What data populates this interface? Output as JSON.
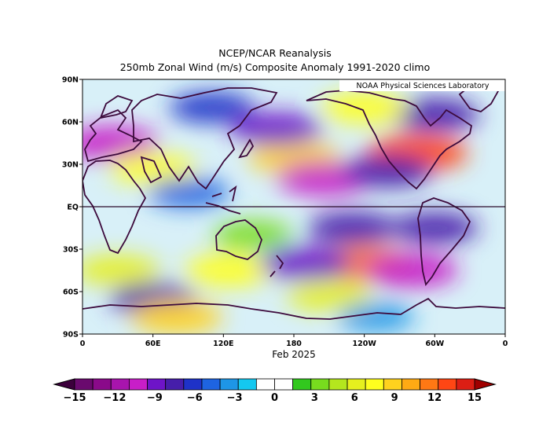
{
  "title": "NCEP/NCAR Reanalysis",
  "subtitle": "250mb Zonal Wind (m/s) Composite Anomaly 1991-2020 climo",
  "credit": "NOAA Physical Sciences Laboratory",
  "xlabel": "Feb 2025",
  "lat_ticks": [
    "90N",
    "60N",
    "30N",
    "EQ",
    "30S",
    "60S",
    "90S"
  ],
  "lon_ticks": [
    "0",
    "60E",
    "120E",
    "180",
    "120W",
    "60W",
    "0"
  ],
  "colorbar": {
    "labels": [
      "-15",
      "-12",
      "-9",
      "-6",
      "-3",
      "0",
      "3",
      "6",
      "9",
      "12",
      "15"
    ],
    "colors": [
      "#6a0a6e",
      "#8a0a8a",
      "#a814ad",
      "#c81ec8",
      "#6e14c8",
      "#461eaa",
      "#1e32c8",
      "#1e64e1",
      "#1e96e6",
      "#14c8f0",
      "#ffffff",
      "#ffffff",
      "#32c81e",
      "#78dc1e",
      "#b4e61e",
      "#e6f01e",
      "#ffff1e",
      "#ffd21e",
      "#ffaa14",
      "#ff7814",
      "#ff4614",
      "#dc1e14"
    ],
    "under_color": "#3c003c",
    "over_color": "#a00000"
  },
  "chart_data": {
    "type": "heatmap",
    "title": "NCEP/NCAR Reanalysis",
    "subtitle": "250mb Zonal Wind (m/s) Composite Anomaly 1991-2020 climo",
    "xlabel": "Feb 2025",
    "units": "m/s",
    "lon_range": [
      0,
      360
    ],
    "lat_range": [
      -90,
      90
    ],
    "value_range": [
      -15,
      15
    ],
    "features": [
      {
        "lon": 25,
        "lat": 45,
        "value": -10
      },
      {
        "lon": 180,
        "lat": 35,
        "value": 9
      },
      {
        "lon": 285,
        "lat": 38,
        "value": 13
      },
      {
        "lon": 165,
        "lat": 55,
        "value": -9
      },
      {
        "lon": 205,
        "lat": 20,
        "value": -10
      },
      {
        "lon": 260,
        "lat": 25,
        "value": -8
      },
      {
        "lon": 60,
        "lat": 27,
        "value": 7
      },
      {
        "lon": 145,
        "lat": -20,
        "value": 4
      },
      {
        "lon": 30,
        "lat": -45,
        "value": 6
      },
      {
        "lon": 125,
        "lat": -45,
        "value": 8
      },
      {
        "lon": 240,
        "lat": -40,
        "value": 12
      },
      {
        "lon": 190,
        "lat": -40,
        "value": -9
      },
      {
        "lon": 280,
        "lat": -45,
        "value": -10
      },
      {
        "lon": 60,
        "lat": -65,
        "value": -7
      },
      {
        "lon": 210,
        "lat": -63,
        "value": 6
      },
      {
        "lon": 110,
        "lat": 70,
        "value": -6
      },
      {
        "lon": 300,
        "lat": 65,
        "value": -8
      },
      {
        "lon": 240,
        "lat": 70,
        "value": 7
      },
      {
        "lon": 90,
        "lat": 10,
        "value": -5
      },
      {
        "lon": 230,
        "lat": -15,
        "value": -8
      },
      {
        "lon": 300,
        "lat": -15,
        "value": -7
      },
      {
        "lon": 80,
        "lat": -78,
        "value": 9
      },
      {
        "lon": 250,
        "lat": -78,
        "value": -3
      }
    ]
  }
}
